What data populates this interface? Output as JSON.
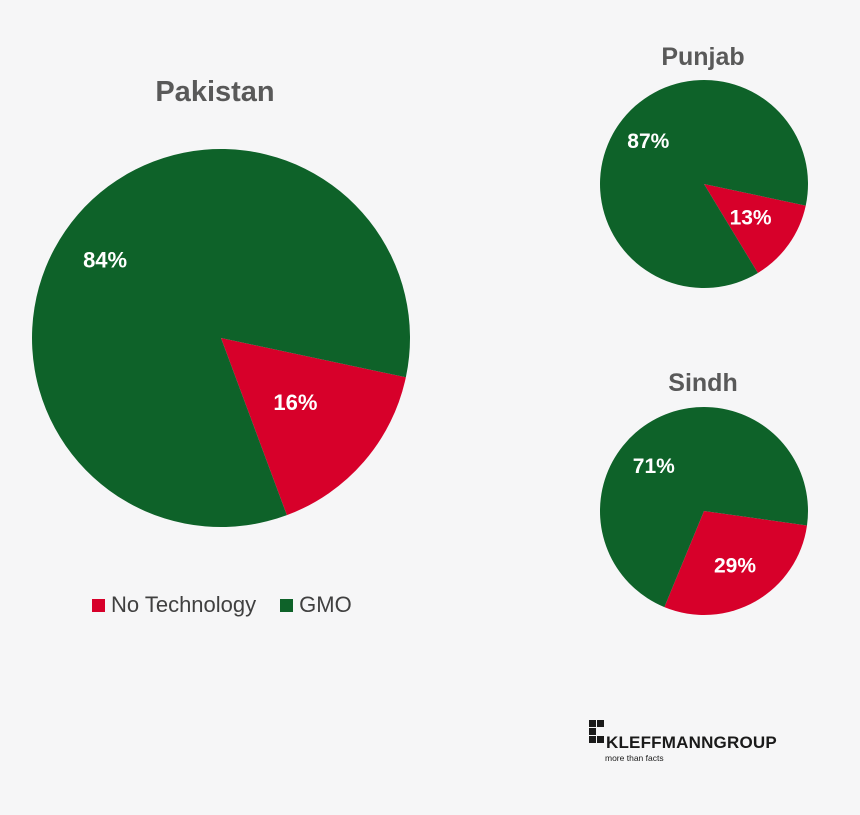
{
  "colors": {
    "no_technology": "#d7002a",
    "gmo": "#0e6229",
    "background": "#f6f6f7"
  },
  "chart_data": [
    {
      "type": "pie",
      "title": "Pakistan",
      "categories": [
        "No Technology",
        "GMO"
      ],
      "values": [
        16,
        84
      ],
      "labels": [
        "16%",
        "84%"
      ]
    },
    {
      "type": "pie",
      "title": "Punjab",
      "categories": [
        "No Technology",
        "GMO"
      ],
      "values": [
        13,
        87
      ],
      "labels": [
        "13%",
        "87%"
      ]
    },
    {
      "type": "pie",
      "title": "Sindh",
      "categories": [
        "No Technology",
        "GMO"
      ],
      "values": [
        29,
        71
      ],
      "labels": [
        "29%",
        "71%"
      ]
    }
  ],
  "legend": {
    "placement": "bottom-left",
    "items": [
      {
        "label": "No Technology",
        "color": "#d7002a"
      },
      {
        "label": "GMO",
        "color": "#0e6229"
      }
    ]
  },
  "logo": {
    "name": "KLEFFMANNGROUP",
    "tagline": "more than facts"
  }
}
